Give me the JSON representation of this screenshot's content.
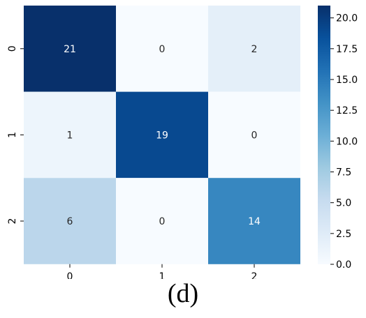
{
  "caption": "(d)",
  "chart_data": {
    "type": "heatmap",
    "colormap": "Blues",
    "row_labels": [
      "0",
      "1",
      "2"
    ],
    "col_labels": [
      "0",
      "1",
      "2"
    ],
    "values": [
      [
        21,
        0,
        2
      ],
      [
        1,
        19,
        0
      ],
      [
        6,
        0,
        14
      ]
    ],
    "vmin": 0,
    "vmax": 21,
    "colorbar_ticks": [
      0.0,
      2.5,
      5.0,
      7.5,
      10.0,
      12.5,
      15.0,
      17.5,
      20.0
    ],
    "colorbar_tick_labels": [
      "0.0",
      "2.5",
      "5.0",
      "7.5",
      "10.0",
      "12.5",
      "15.0",
      "17.5",
      "20.0"
    ],
    "annotated": true,
    "colorbar": "right"
  }
}
